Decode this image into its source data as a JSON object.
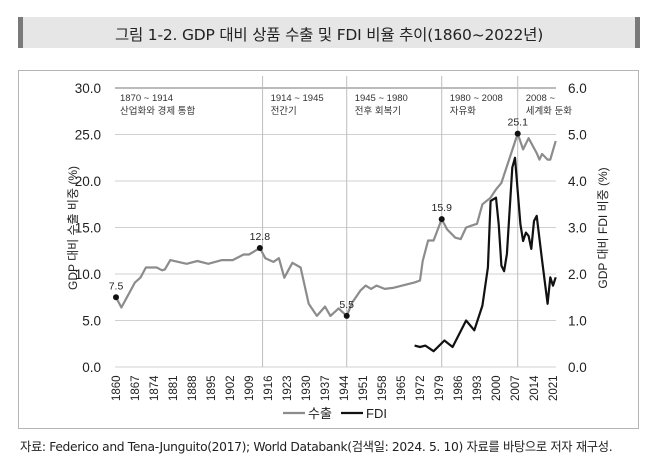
{
  "title": "그림 1-2. GDP 대비 상품 수출 및 FDI 비율 추이(1860~2022년)",
  "caption": "자료: Federico and Tena-Junguito(2017); World Databank(검색일: 2024. 5. 10) 자료를 바탕으로 저자 재구성.",
  "chart_data": {
    "type": "line",
    "title": "",
    "xlabel": "",
    "ylabel": "GDP 대비 수출 비중 (%)",
    "y2label": "GDP 대비 FDI 비중 (%)",
    "ylim": [
      0,
      30
    ],
    "y2lim": [
      0,
      6
    ],
    "yticks": [
      "0.0",
      "5.0",
      "10.0",
      "15.0",
      "20.0",
      "25.0",
      "30.0"
    ],
    "y2ticks": [
      "0.0",
      "1.0",
      "2.0",
      "3.0",
      "4.0",
      "5.0",
      "6.0"
    ],
    "xticks": [
      "1860",
      "1867",
      "1874",
      "1881",
      "1888",
      "1895",
      "1902",
      "1909",
      "1916",
      "1923",
      "1930",
      "1937",
      "1944",
      "1951",
      "1958",
      "1965",
      "1972",
      "1979",
      "1986",
      "1993",
      "2000",
      "2007",
      "2014",
      "2021"
    ],
    "grid": "horizontal",
    "legend": "bottom",
    "periods": [
      {
        "range": "1870 ~ 1914",
        "name": "산업화와 경제 통합",
        "start": 1860
      },
      {
        "range": "1914 ~ 1945",
        "name": "전간기",
        "start": 1914
      },
      {
        "range": "1945 ~ 1980",
        "name": "전후 회복기",
        "start": 1945
      },
      {
        "range": "1980 ~ 2008",
        "name": "자유화",
        "start": 1980
      },
      {
        "range": "2008 ~",
        "name": "세계화 둔화",
        "start": 2008
      }
    ],
    "series": [
      {
        "name": "수출",
        "axis": "left",
        "color": "#8c8c8c",
        "x": [
          1860,
          1862,
          1864,
          1867,
          1869,
          1871,
          1875,
          1877,
          1878,
          1880,
          1883,
          1886,
          1890,
          1894,
          1899,
          1903,
          1907,
          1909,
          1913,
          1915,
          1918,
          1920,
          1922,
          1925,
          1928,
          1931,
          1934,
          1937,
          1939,
          1942,
          1945,
          1947,
          1950,
          1952,
          1954,
          1956,
          1959,
          1962,
          1966,
          1970,
          1972,
          1973,
          1975,
          1977,
          1980,
          1982,
          1985,
          1987,
          1989,
          1991,
          1993,
          1995,
          1998,
          2000,
          2002,
          2008,
          2010,
          2012,
          2015,
          2016,
          2017,
          2019,
          2020,
          2022
        ],
        "values": [
          7.5,
          6.4,
          7.5,
          9.1,
          9.6,
          10.7,
          10.7,
          10.4,
          10.5,
          11.5,
          11.3,
          11.1,
          11.4,
          11.1,
          11.5,
          11.5,
          12.1,
          12.1,
          12.8,
          11.7,
          11.3,
          11.7,
          9.6,
          11.2,
          10.7,
          6.8,
          5.5,
          6.5,
          5.5,
          6.3,
          5.5,
          6.9,
          8.2,
          8.75,
          8.4,
          8.75,
          8.4,
          8.5,
          8.8,
          9.1,
          9.3,
          11.4,
          13.6,
          13.6,
          15.9,
          14.8,
          13.9,
          13.75,
          15.0,
          15.2,
          15.4,
          17.5,
          18.2,
          19.1,
          19.8,
          25.1,
          23.4,
          24.6,
          23.0,
          22.3,
          22.9,
          22.3,
          22.3,
          24.3
        ]
      },
      {
        "name": "FDI",
        "axis": "right",
        "color": "#111111",
        "x": [
          1970,
          1972,
          1974,
          1977,
          1981,
          1984,
          1989,
          1992,
          1995,
          1997,
          1998,
          2000,
          2001,
          2002,
          2003,
          2004,
          2006,
          2007,
          2009,
          2010,
          2011,
          2012,
          2013,
          2014,
          2015,
          2017,
          2019,
          2020,
          2021,
          2022
        ],
        "values": [
          0.46,
          0.43,
          0.46,
          0.34,
          0.57,
          0.43,
          1.0,
          0.79,
          1.32,
          2.14,
          3.57,
          3.64,
          3.07,
          2.18,
          2.06,
          2.43,
          4.29,
          4.5,
          3.07,
          2.71,
          2.89,
          2.82,
          2.54,
          3.14,
          3.25,
          2.29,
          1.36,
          1.93,
          1.75,
          1.93
        ]
      }
    ],
    "annotations": [
      {
        "x": 1860,
        "y": 7.5,
        "label": "7.5"
      },
      {
        "x": 1913,
        "y": 12.8,
        "label": "12.8"
      },
      {
        "x": 1945,
        "y": 5.5,
        "label": "5.5"
      },
      {
        "x": 1980,
        "y": 15.9,
        "label": "15.9"
      },
      {
        "x": 2008,
        "y": 25.1,
        "label": "25.1"
      }
    ]
  }
}
